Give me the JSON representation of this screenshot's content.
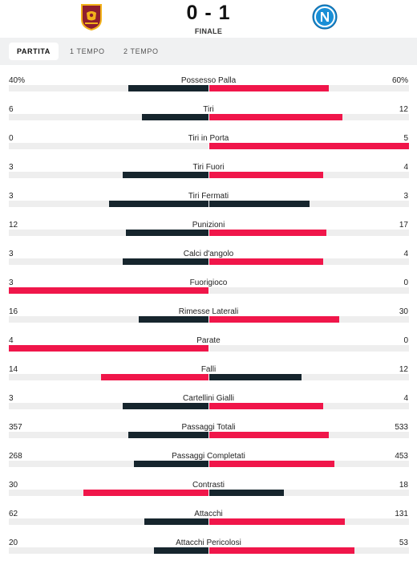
{
  "match": {
    "score": "0 - 1",
    "status": "FINALE",
    "home_logo": "as-roma-crest",
    "away_logo": "ssc-napoli-crest"
  },
  "tabs": [
    {
      "label": "PARTITA",
      "active": true
    },
    {
      "label": "1 TEMPO",
      "active": false
    },
    {
      "label": "2 TEMPO",
      "active": false
    }
  ],
  "colors": {
    "winner": "#f0164a",
    "loser": "#16252d",
    "track": "#eeeeee"
  },
  "stats": [
    {
      "label": "Possesso Palla",
      "home": "40%",
      "away": "60%",
      "h": 40,
      "a": 60
    },
    {
      "label": "Tiri",
      "home": "6",
      "away": "12",
      "h": 6,
      "a": 12
    },
    {
      "label": "Tiri in Porta",
      "home": "0",
      "away": "5",
      "h": 0,
      "a": 5
    },
    {
      "label": "Tiri Fuori",
      "home": "3",
      "away": "4",
      "h": 3,
      "a": 4
    },
    {
      "label": "Tiri Fermati",
      "home": "3",
      "away": "3",
      "h": 3,
      "a": 3
    },
    {
      "label": "Punizioni",
      "home": "12",
      "away": "17",
      "h": 12,
      "a": 17
    },
    {
      "label": "Calci d'angolo",
      "home": "3",
      "away": "4",
      "h": 3,
      "a": 4
    },
    {
      "label": "Fuorigioco",
      "home": "3",
      "away": "0",
      "h": 3,
      "a": 0
    },
    {
      "label": "Rimesse Laterali",
      "home": "16",
      "away": "30",
      "h": 16,
      "a": 30
    },
    {
      "label": "Parate",
      "home": "4",
      "away": "0",
      "h": 4,
      "a": 0
    },
    {
      "label": "Falli",
      "home": "14",
      "away": "12",
      "h": 14,
      "a": 12
    },
    {
      "label": "Cartellini Gialli",
      "home": "3",
      "away": "4",
      "h": 3,
      "a": 4
    },
    {
      "label": "Passaggi Totali",
      "home": "357",
      "away": "533",
      "h": 357,
      "a": 533
    },
    {
      "label": "Passaggi Completati",
      "home": "268",
      "away": "453",
      "h": 268,
      "a": 453
    },
    {
      "label": "Contrasti",
      "home": "30",
      "away": "18",
      "h": 30,
      "a": 18
    },
    {
      "label": "Attacchi",
      "home": "62",
      "away": "131",
      "h": 62,
      "a": 131
    },
    {
      "label": "Attacchi Pericolosi",
      "home": "20",
      "away": "53",
      "h": 20,
      "a": 53
    }
  ]
}
